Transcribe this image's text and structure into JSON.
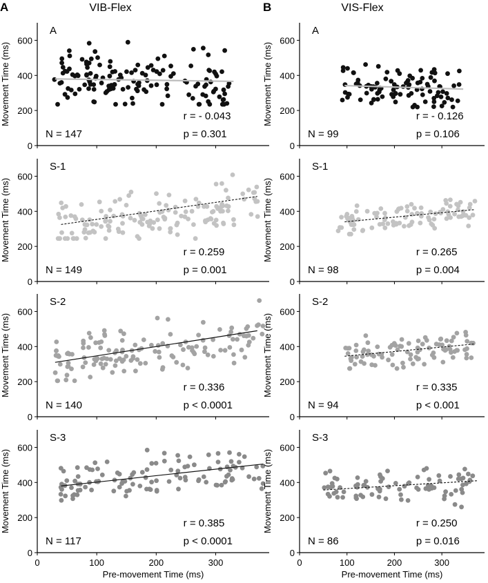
{
  "figure": {
    "panel_letters": [
      "A",
      "B"
    ],
    "column_titles": [
      "VIB-Flex",
      "VIS-Flex"
    ],
    "colors": {
      "A": "#111111",
      "S-1": "#c3c3c3",
      "S-2": "#a3a3a3",
      "S-3": "#8a8a8a",
      "flat_line": "#bdbdbd",
      "fit_line": "#111111",
      "axis": "#000000"
    }
  },
  "chart_data": [
    {
      "type": "scatter",
      "panel": "A",
      "column": "VIB-Flex",
      "subject": "A",
      "ylabel": "Movement Time (ms)",
      "xlabel": "",
      "yticks": [
        "0",
        "200",
        "400",
        "600"
      ],
      "xticks": [],
      "xlim": [
        0,
        390
      ],
      "ylim": [
        0,
        700
      ],
      "N_label": "N = 147",
      "r_label": "r = - 0.043",
      "p_label": "p = 0.301",
      "fit": {
        "x": [
          30,
          330
        ],
        "y": [
          380,
          366
        ],
        "style": "flat"
      },
      "point_count": 147,
      "x_range": [
        28,
        325
      ],
      "y_mean": 372,
      "y_sd": 85,
      "y_slope": -0.05,
      "y_clip": [
        235,
        630
      ]
    },
    {
      "type": "scatter",
      "panel": "A",
      "column": "VIB-Flex",
      "subject": "S-1",
      "ylabel": "Movement Time (ms)",
      "xlabel": "",
      "yticks": [
        "0",
        "200",
        "400",
        "600"
      ],
      "xticks": [],
      "xlim": [
        0,
        390
      ],
      "ylim": [
        0,
        700
      ],
      "N_label": "N = 149",
      "r_label": "r = 0.259",
      "p_label": "p = 0.001",
      "fit": {
        "x": [
          40,
          370
        ],
        "y": [
          325,
          485
        ],
        "style": "dashed"
      },
      "point_count": 149,
      "x_range": [
        35,
        375
      ],
      "y_mean": 380,
      "y_sd": 65,
      "y_slope": 0.48,
      "y_clip": [
        245,
        625
      ]
    },
    {
      "type": "scatter",
      "panel": "A",
      "column": "VIB-Flex",
      "subject": "S-2",
      "ylabel": "Movement Time (ms)",
      "xlabel": "",
      "yticks": [
        "0",
        "200",
        "400",
        "600"
      ],
      "xticks": [],
      "xlim": [
        0,
        390
      ],
      "ylim": [
        0,
        700
      ],
      "N_label": "N = 140",
      "r_label": "r = 0.336",
      "p_label": "p < 0.0001",
      "fit": {
        "x": [
          30,
          370
        ],
        "y": [
          310,
          490
        ],
        "style": "solid"
      },
      "point_count": 140,
      "x_range": [
        30,
        380
      ],
      "y_mean": 390,
      "y_sd": 70,
      "y_slope": 0.53,
      "y_clip": [
        205,
        680
      ]
    },
    {
      "type": "scatter",
      "panel": "A",
      "column": "VIB-Flex",
      "subject": "S-3",
      "ylabel": "Movement Time (ms)",
      "xlabel": "Pre-movement Time (ms)",
      "yticks": [
        "0",
        "200",
        "400",
        "600"
      ],
      "xticks": [
        "0",
        "100",
        "200",
        "300"
      ],
      "xlim": [
        0,
        390
      ],
      "ylim": [
        0,
        700
      ],
      "N_label": "N = 117",
      "r_label": "r = 0.385",
      "p_label": "p < 0.0001",
      "fit": {
        "x": [
          40,
          380
        ],
        "y": [
          380,
          505
        ],
        "style": "solid"
      },
      "point_count": 117,
      "x_range": [
        38,
        380
      ],
      "y_mean": 440,
      "y_sd": 60,
      "y_slope": 0.37,
      "y_clip": [
        230,
        660
      ]
    },
    {
      "type": "scatter",
      "panel": "B",
      "column": "VIS-Flex",
      "subject": "A",
      "ylabel": "Movement Time (ms)",
      "xlabel": "",
      "yticks": [
        "0",
        "200",
        "400",
        "600"
      ],
      "xticks": [],
      "xlim": [
        0,
        390
      ],
      "ylim": [
        0,
        700
      ],
      "N_label": "N = 99",
      "r_label": "r = - 0.126",
      "p_label": "p = 0.106",
      "fit": {
        "x": [
          95,
          345
        ],
        "y": [
          342,
          322
        ],
        "style": "flat"
      },
      "point_count": 99,
      "x_range": [
        90,
        340
      ],
      "y_mean": 335,
      "y_sd": 55,
      "y_slope": -0.08,
      "y_clip": [
        220,
        485
      ]
    },
    {
      "type": "scatter",
      "panel": "B",
      "column": "VIS-Flex",
      "subject": "S-1",
      "ylabel": "Movement Time (ms)",
      "xlabel": "",
      "yticks": [
        "0",
        "200",
        "400",
        "600"
      ],
      "xticks": [],
      "xlim": [
        0,
        390
      ],
      "ylim": [
        0,
        700
      ],
      "N_label": "N = 98",
      "r_label": "r = 0.265",
      "p_label": "p = 0.004",
      "fit": {
        "x": [
          95,
          370
        ],
        "y": [
          340,
          410
        ],
        "style": "dashed"
      },
      "point_count": 98,
      "x_range": [
        80,
        370
      ],
      "y_mean": 370,
      "y_sd": 45,
      "y_slope": 0.25,
      "y_clip": [
        270,
        490
      ]
    },
    {
      "type": "scatter",
      "panel": "B",
      "column": "VIS-Flex",
      "subject": "S-2",
      "ylabel": "Movement Time (ms)",
      "xlabel": "",
      "yticks": [
        "0",
        "200",
        "400",
        "600"
      ],
      "xticks": [],
      "xlim": [
        0,
        390
      ],
      "ylim": [
        0,
        700
      ],
      "N_label": "N = 94",
      "r_label": "r = 0.335",
      "p_label": "p < 0.001",
      "fit": {
        "x": [
          95,
          370
        ],
        "y": [
          345,
          415
        ],
        "style": "dashed"
      },
      "point_count": 94,
      "x_range": [
        95,
        370
      ],
      "y_mean": 375,
      "y_sd": 45,
      "y_slope": 0.25,
      "y_clip": [
        275,
        485
      ]
    },
    {
      "type": "scatter",
      "panel": "B",
      "column": "VIS-Flex",
      "subject": "S-3",
      "ylabel": "Movement Time (ms)",
      "xlabel": "Pre-movement Time (ms)",
      "yticks": [
        "0",
        "200",
        "400",
        "600"
      ],
      "xticks": [
        "0",
        "100",
        "200",
        "300"
      ],
      "xlim": [
        0,
        390
      ],
      "ylim": [
        0,
        700
      ],
      "N_label": "N = 86",
      "r_label": "r = 0.250",
      "p_label": "p = 0.016",
      "fit": {
        "x": [
          50,
          375
        ],
        "y": [
          357,
          410
        ],
        "style": "dashed"
      },
      "point_count": 86,
      "x_range": [
        50,
        370
      ],
      "y_mean": 380,
      "y_sd": 45,
      "y_slope": 0.17,
      "y_clip": [
        255,
        480
      ]
    }
  ]
}
